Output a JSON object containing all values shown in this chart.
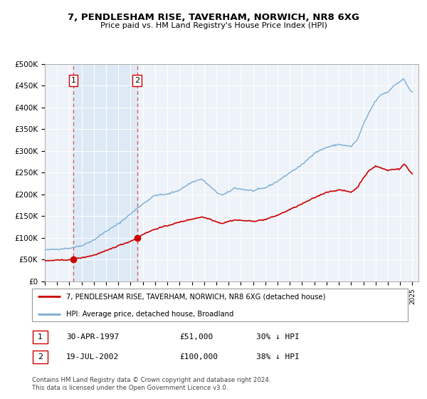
{
  "title": "7, PENDLESHAM RISE, TAVERHAM, NORWICH, NR8 6XG",
  "subtitle": "Price paid vs. HM Land Registry's House Price Index (HPI)",
  "sale1_date": 1997.33,
  "sale1_price": 51000,
  "sale2_date": 2002.54,
  "sale2_price": 100000,
  "hpi_color": "#7aadd4",
  "price_color": "#cc0000",
  "dot_color": "#cc0000",
  "shading_color": "#ddeaf5",
  "legend_line1": "7, PENDLESHAM RISE, TAVERHAM, NORWICH, NR8 6XG (detached house)",
  "legend_line2": "HPI: Average price, detached house, Broadland",
  "table_row1_label": "1",
  "table_row1_date": "30-APR-1997",
  "table_row1_price": "£51,000",
  "table_row1_hpi": "30% ↓ HPI",
  "table_row2_label": "2",
  "table_row2_date": "19-JUL-2002",
  "table_row2_price": "£100,000",
  "table_row2_hpi": "38% ↓ HPI",
  "footer": "Contains HM Land Registry data © Crown copyright and database right 2024.\nThis data is licensed under the Open Government Licence v3.0.",
  "xmin": 1995.0,
  "xmax": 2025.5,
  "ymin": 0,
  "ymax": 500000,
  "yticks": [
    0,
    50000,
    100000,
    150000,
    200000,
    250000,
    300000,
    350000,
    400000,
    450000,
    500000
  ],
  "ytick_labels": [
    "£0",
    "£50K",
    "£100K",
    "£150K",
    "£200K",
    "£250K",
    "£300K",
    "£350K",
    "£400K",
    "£450K",
    "£500K"
  ]
}
